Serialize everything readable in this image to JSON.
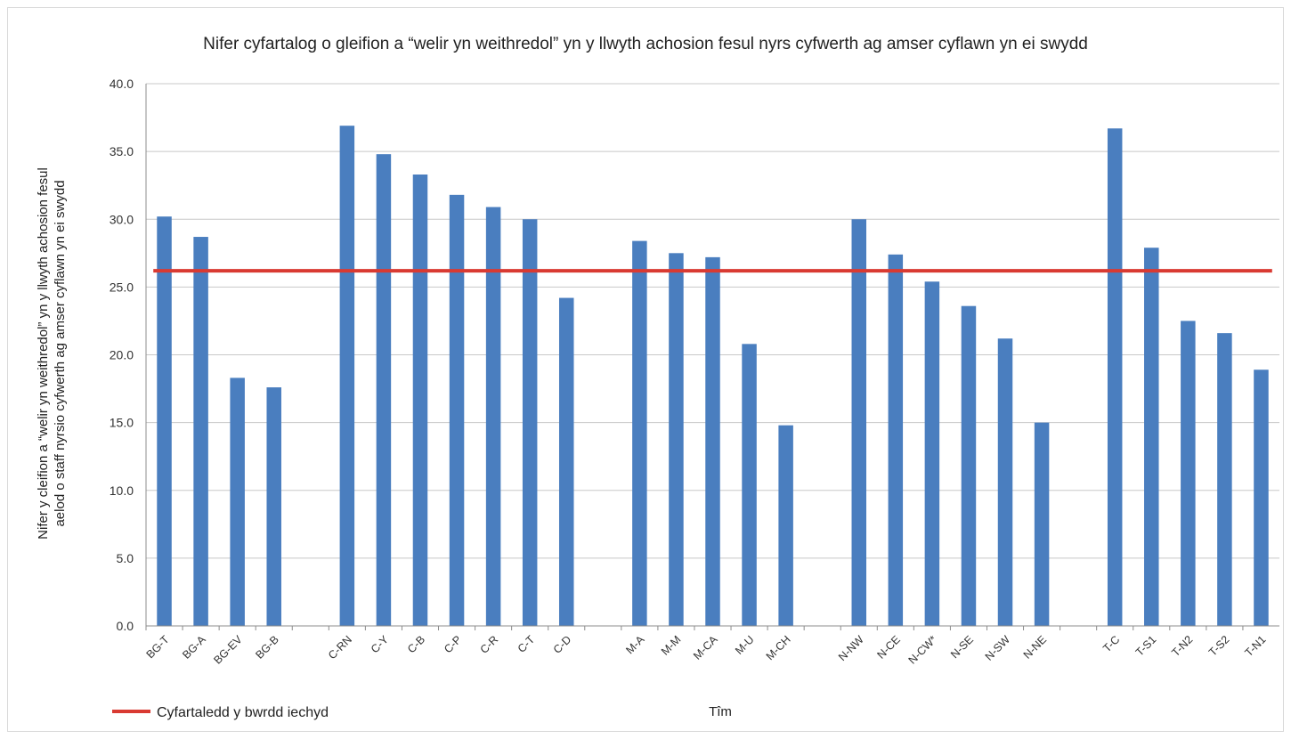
{
  "chart_data": {
    "type": "bar",
    "title": "Nifer cyfartalog o gleifion a “welir yn weithredol” yn y llwyth achosion fesul nyrs cyfwerth ag amser cyflawn yn ei swydd",
    "xlabel": "Tîm",
    "ylabel_lines": [
      "Nifer y cleifion a “welir yn weithredol” yn y llwyth achosion fesul",
      "aelod o staff nyrsio cyfwerth ag amser cyflawn yn ei swydd"
    ],
    "ylim": [
      0,
      40
    ],
    "yticks": [
      "0.0",
      "5.0",
      "10.0",
      "15.0",
      "20.0",
      "25.0",
      "30.0",
      "35.0",
      "40.0"
    ],
    "grid": true,
    "groups": [
      {
        "categories": [
          "BG-T",
          "BG-A",
          "BG-EV",
          "BG-B"
        ],
        "values": [
          30.2,
          28.7,
          18.3,
          17.6
        ]
      },
      {
        "categories": [
          "C-RN",
          "C-Y",
          "C-B",
          "C-P",
          "C-R",
          "C-T",
          "C-D"
        ],
        "values": [
          36.9,
          34.8,
          33.3,
          31.8,
          30.9,
          30.0,
          24.2
        ]
      },
      {
        "categories": [
          "M-A",
          "M-M",
          "M-CA",
          "M-U",
          "M-CH"
        ],
        "values": [
          28.4,
          27.5,
          27.2,
          20.8,
          14.8
        ]
      },
      {
        "categories": [
          "N-NW",
          "N-CE",
          "N-CW*",
          "N-SE",
          "N-SW",
          "N-NE"
        ],
        "values": [
          30.0,
          27.4,
          25.4,
          23.6,
          21.2,
          15.0
        ]
      },
      {
        "categories": [
          "T-C",
          "T-S1",
          "T-N2",
          "T-S2",
          "T-N1"
        ],
        "values": [
          36.7,
          27.9,
          22.5,
          21.6,
          18.9
        ]
      }
    ],
    "reference_line": {
      "name": "Cyfartaledd y bwrdd iechyd",
      "value": 26.2
    },
    "legend_position": "bottom-left",
    "colors": {
      "bar": "#4a7ebf",
      "line": "#d93a32",
      "grid": "#c8c8c8",
      "axis": "#8c8c8c"
    }
  }
}
